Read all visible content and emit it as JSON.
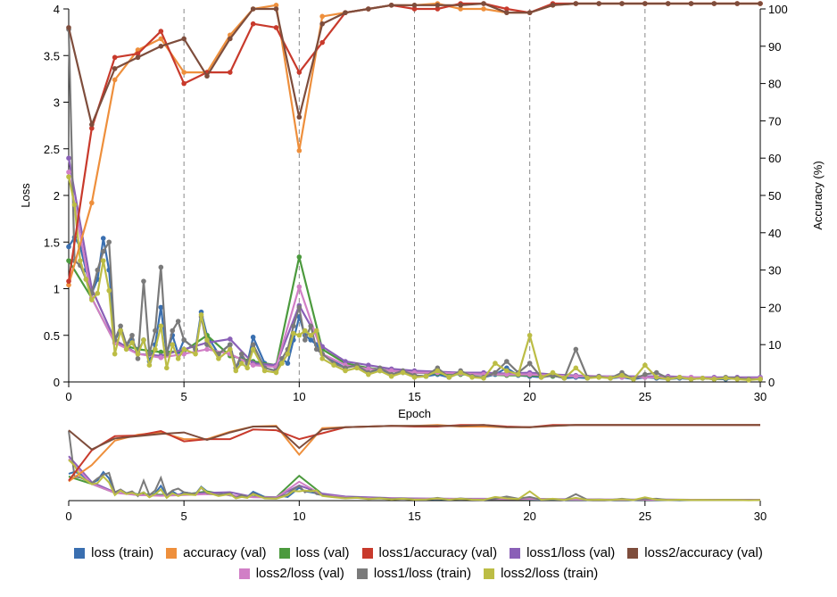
{
  "chart_data": {
    "type": "line",
    "xlabel": "Epoch",
    "ylabel_left": "Loss",
    "ylabel_right": "Accuracy (%)",
    "xlim": [
      0,
      30
    ],
    "ylim_left": [
      0,
      4
    ],
    "ylim_right": [
      0,
      100
    ],
    "x_ticks": [
      0,
      5,
      10,
      15,
      20,
      25,
      30
    ],
    "y_ticks_left": [
      "0",
      "0.5",
      "1",
      "1.5",
      "2",
      "2.5",
      "3",
      "3.5",
      "4"
    ],
    "y_ticks_right": [
      0,
      10,
      20,
      30,
      40,
      50,
      60,
      70,
      80,
      90,
      100
    ],
    "grid": "vertical dashed at x ticks",
    "legend_position": "bottom",
    "overview_panel": true,
    "series": [
      {
        "name": "loss (train)",
        "color": "#3a6fb0",
        "axis": "left",
        "x": [
          0,
          0.25,
          0.5,
          0.75,
          1,
          1.25,
          1.5,
          1.75,
          2,
          2.25,
          2.5,
          2.75,
          3,
          3.25,
          3.5,
          3.75,
          4,
          4.25,
          4.5,
          4.75,
          5,
          5.5,
          5.75,
          6,
          6.5,
          7,
          7.25,
          7.5,
          7.75,
          8,
          8.5,
          9,
          9.25,
          9.5,
          9.75,
          10,
          10.25,
          10.5,
          10.75,
          11,
          11.5,
          12,
          12.5,
          13,
          13.5,
          14,
          14.5,
          15,
          15.5,
          16,
          16.5,
          17,
          17.5,
          18,
          18.5,
          19,
          19.5,
          20,
          20.5,
          21,
          21.5,
          22,
          22.5,
          23,
          23.5,
          24,
          24.5,
          25,
          25.5,
          26,
          26.5,
          27,
          27.5,
          28,
          28.5,
          29,
          29.5,
          30
        ],
        "y": [
          1.45,
          1.55,
          1.45,
          1.2,
          0.95,
          1.1,
          1.54,
          1.2,
          0.45,
          0.55,
          0.4,
          0.45,
          0.32,
          0.45,
          0.22,
          0.4,
          0.8,
          0.3,
          0.5,
          0.3,
          0.45,
          0.35,
          0.75,
          0.5,
          0.3,
          0.4,
          0.15,
          0.25,
          0.2,
          0.48,
          0.2,
          0.15,
          0.25,
          0.2,
          0.45,
          0.7,
          0.5,
          0.45,
          0.4,
          0.3,
          0.22,
          0.15,
          0.18,
          0.1,
          0.12,
          0.08,
          0.1,
          0.07,
          0.06,
          0.08,
          0.05,
          0.1,
          0.06,
          0.05,
          0.08,
          0.15,
          0.07,
          0.06,
          0.05,
          0.07,
          0.04,
          0.05,
          0.04,
          0.06,
          0.04,
          0.05,
          0.03,
          0.05,
          0.04,
          0.03,
          0.04,
          0.03,
          0.04,
          0.03,
          0.03,
          0.04,
          0.03,
          0.03
        ]
      },
      {
        "name": "accuracy (val)",
        "color": "#ee8f3c",
        "axis": "right",
        "x": [
          0,
          1,
          2,
          3,
          4,
          5,
          6,
          7,
          8,
          9,
          10,
          11,
          12,
          13,
          14,
          15,
          16,
          17,
          18,
          19,
          20,
          21,
          22,
          23,
          24,
          25,
          26,
          27,
          28,
          29,
          30
        ],
        "y": [
          26,
          48,
          81,
          89,
          92,
          83,
          83,
          93,
          100,
          101,
          62,
          98,
          99,
          100,
          101,
          101,
          102,
          100,
          100,
          99,
          99,
          101,
          102,
          102,
          102,
          102,
          102,
          102,
          102,
          102,
          102
        ]
      },
      {
        "name": "loss (val)",
        "color": "#4c9a3e",
        "axis": "left",
        "x": [
          0,
          1,
          2,
          3,
          4,
          5,
          6,
          7,
          8,
          9,
          10,
          11,
          12,
          13,
          14,
          15,
          16,
          17,
          18,
          19,
          20,
          21,
          22,
          23,
          24,
          25,
          26,
          27,
          28,
          29,
          30
        ],
        "y": [
          1.3,
          0.9,
          0.42,
          0.35,
          0.32,
          0.33,
          0.5,
          0.28,
          0.22,
          0.18,
          1.34,
          0.35,
          0.2,
          0.15,
          0.12,
          0.1,
          0.09,
          0.08,
          0.08,
          0.07,
          0.07,
          0.06,
          0.06,
          0.05,
          0.05,
          0.05,
          0.05,
          0.04,
          0.04,
          0.04,
          0.04
        ]
      },
      {
        "name": "loss1/accuracy (val)",
        "color": "#c83a2c",
        "axis": "right",
        "x": [
          0,
          1,
          2,
          3,
          4,
          5,
          6,
          7,
          8,
          9,
          10,
          11,
          12,
          13,
          14,
          15,
          16,
          17,
          18,
          19,
          20,
          21,
          22,
          23,
          24,
          25,
          26,
          27,
          28,
          29,
          30
        ],
        "y": [
          27,
          68,
          87,
          88,
          94,
          80,
          83,
          83,
          96,
          95,
          83,
          91,
          99,
          100,
          101,
          100,
          100,
          102,
          102,
          100,
          99,
          102,
          102,
          102,
          102,
          102,
          102,
          102,
          102,
          102,
          102
        ]
      },
      {
        "name": "loss1/loss (val)",
        "color": "#8a60b7",
        "axis": "left",
        "x": [
          0,
          1,
          2,
          3,
          4,
          5,
          6,
          7,
          8,
          9,
          10,
          11,
          12,
          13,
          14,
          15,
          16,
          17,
          18,
          19,
          20,
          21,
          22,
          23,
          24,
          25,
          26,
          27,
          28,
          29,
          30
        ],
        "y": [
          2.4,
          1.0,
          0.45,
          0.3,
          0.28,
          0.35,
          0.42,
          0.46,
          0.2,
          0.18,
          0.82,
          0.38,
          0.22,
          0.18,
          0.14,
          0.12,
          0.11,
          0.1,
          0.1,
          0.09,
          0.1,
          0.08,
          0.07,
          0.06,
          0.06,
          0.06,
          0.06,
          0.05,
          0.05,
          0.05,
          0.05
        ]
      },
      {
        "name": "loss2/accuracy (val)",
        "color": "#7e4d3c",
        "axis": "right",
        "x": [
          0,
          1,
          2,
          3,
          4,
          5,
          6,
          7,
          8,
          9,
          10,
          11,
          12,
          13,
          14,
          15,
          16,
          17,
          18,
          19,
          20,
          21,
          22,
          23,
          24,
          25,
          26,
          27,
          28,
          29,
          30
        ],
        "y": [
          95,
          69,
          84,
          87,
          90,
          92,
          82,
          92,
          100,
          100,
          71,
          96,
          99,
          100,
          101,
          101,
          101,
          101,
          102,
          99,
          99,
          101,
          102,
          102,
          102,
          102,
          102,
          102,
          102,
          102,
          102
        ]
      },
      {
        "name": "loss2/loss (val)",
        "color": "#d17fc6",
        "axis": "left",
        "x": [
          0,
          1,
          2,
          3,
          4,
          5,
          6,
          7,
          8,
          9,
          10,
          11,
          12,
          13,
          14,
          15,
          16,
          17,
          18,
          19,
          20,
          21,
          22,
          23,
          24,
          25,
          26,
          27,
          28,
          29,
          30
        ],
        "y": [
          2.25,
          0.9,
          0.42,
          0.3,
          0.26,
          0.3,
          0.35,
          0.3,
          0.18,
          0.16,
          1.02,
          0.3,
          0.18,
          0.14,
          0.12,
          0.1,
          0.1,
          0.09,
          0.08,
          0.08,
          0.08,
          0.07,
          0.06,
          0.06,
          0.05,
          0.05,
          0.05,
          0.05,
          0.04,
          0.04,
          0.04
        ]
      },
      {
        "name": "loss1/loss (train)",
        "color": "#7a7a7a",
        "axis": "left",
        "x": [
          0,
          0.25,
          0.5,
          0.75,
          1,
          1.25,
          1.5,
          1.75,
          2,
          2.25,
          2.5,
          2.75,
          3,
          3.25,
          3.5,
          3.75,
          4,
          4.25,
          4.5,
          4.75,
          5,
          5.5,
          5.75,
          6,
          6.5,
          7,
          7.25,
          7.5,
          7.75,
          8,
          8.5,
          9,
          9.25,
          9.5,
          9.75,
          10,
          10.25,
          10.5,
          10.75,
          11,
          11.5,
          12,
          12.5,
          13,
          13.5,
          14,
          14.5,
          15,
          15.5,
          16,
          16.5,
          17,
          17.5,
          18,
          18.5,
          19,
          19.5,
          20,
          20.5,
          21,
          21.5,
          22,
          22.5,
          23,
          23.5,
          24,
          24.5,
          25,
          25.5,
          26,
          26.5,
          27,
          27.5,
          28,
          28.5,
          29,
          29.5,
          30
        ],
        "y": [
          3.78,
          1.3,
          1.25,
          1.1,
          0.95,
          1.2,
          1.4,
          1.5,
          0.45,
          0.6,
          0.4,
          0.5,
          0.25,
          1.08,
          0.3,
          0.55,
          1.23,
          0.3,
          0.55,
          0.65,
          0.45,
          0.35,
          0.7,
          0.4,
          0.3,
          0.4,
          0.15,
          0.3,
          0.2,
          0.4,
          0.15,
          0.12,
          0.25,
          0.35,
          0.6,
          0.8,
          0.45,
          0.6,
          0.35,
          0.3,
          0.2,
          0.15,
          0.18,
          0.1,
          0.15,
          0.08,
          0.12,
          0.07,
          0.06,
          0.15,
          0.05,
          0.12,
          0.06,
          0.05,
          0.1,
          0.22,
          0.1,
          0.2,
          0.05,
          0.07,
          0.04,
          0.35,
          0.05,
          0.06,
          0.04,
          0.1,
          0.03,
          0.08,
          0.1,
          0.04,
          0.05,
          0.03,
          0.04,
          0.03,
          0.05,
          0.04,
          0.03,
          0.03
        ]
      },
      {
        "name": "loss2/loss (train)",
        "color": "#bcbd45",
        "axis": "left",
        "x": [
          0,
          0.25,
          0.5,
          0.75,
          1,
          1.25,
          1.5,
          1.75,
          2,
          2.25,
          2.5,
          2.75,
          3,
          3.25,
          3.5,
          3.75,
          4,
          4.25,
          4.5,
          4.75,
          5,
          5.5,
          5.75,
          6,
          6.5,
          7,
          7.25,
          7.5,
          7.75,
          8,
          8.5,
          9,
          9.25,
          9.5,
          9.75,
          10,
          10.25,
          10.5,
          10.75,
          11,
          11.5,
          12,
          12.5,
          13,
          13.5,
          14,
          14.5,
          15,
          15.5,
          16,
          16.5,
          17,
          17.5,
          18,
          18.5,
          19,
          19.5,
          20,
          20.5,
          21,
          21.5,
          22,
          22.5,
          23,
          23.5,
          24,
          24.5,
          25,
          25.5,
          26,
          26.5,
          27,
          27.5,
          28,
          28.5,
          29,
          29.5,
          30
        ],
        "y": [
          2.2,
          1.9,
          1.3,
          1.1,
          0.88,
          0.95,
          1.3,
          0.98,
          0.3,
          0.55,
          0.35,
          0.42,
          0.3,
          0.45,
          0.18,
          0.35,
          0.6,
          0.15,
          0.4,
          0.25,
          0.35,
          0.3,
          0.72,
          0.45,
          0.25,
          0.35,
          0.12,
          0.2,
          0.15,
          0.35,
          0.12,
          0.1,
          0.2,
          0.3,
          0.52,
          0.5,
          0.55,
          0.5,
          0.55,
          0.25,
          0.18,
          0.12,
          0.15,
          0.08,
          0.12,
          0.06,
          0.1,
          0.05,
          0.06,
          0.12,
          0.05,
          0.1,
          0.05,
          0.04,
          0.2,
          0.12,
          0.08,
          0.5,
          0.05,
          0.1,
          0.04,
          0.15,
          0.04,
          0.05,
          0.04,
          0.07,
          0.03,
          0.18,
          0.05,
          0.03,
          0.05,
          0.03,
          0.04,
          0.03,
          0.04,
          0.03,
          0.02,
          0.03
        ]
      }
    ]
  }
}
